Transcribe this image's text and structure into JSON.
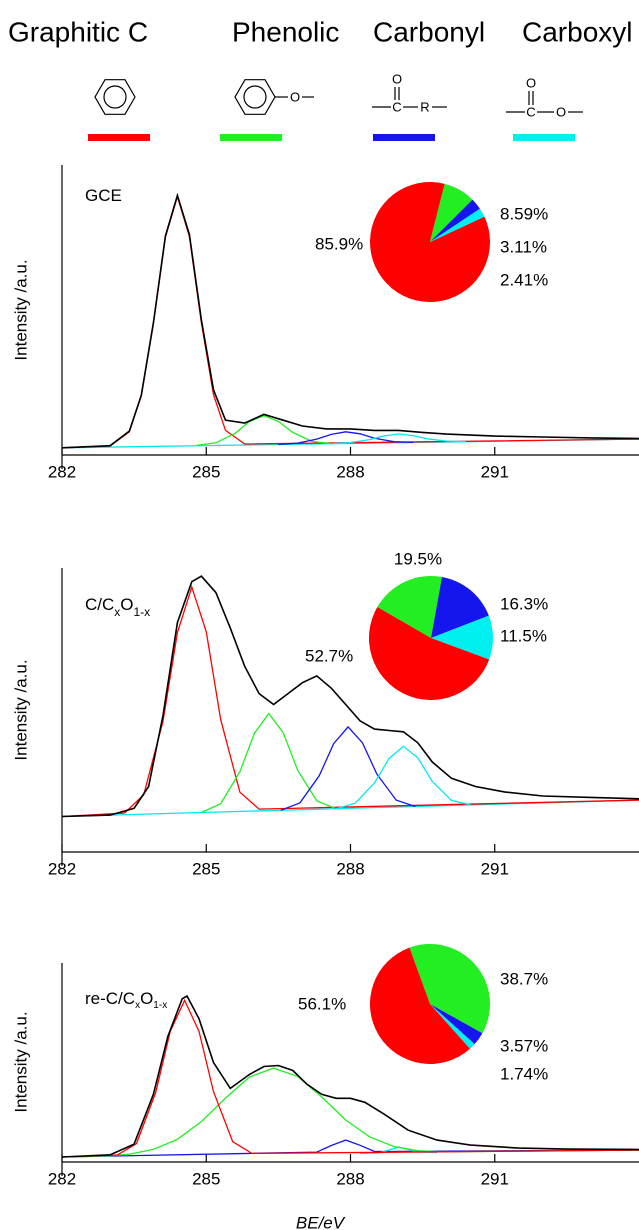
{
  "legend": {
    "items": [
      {
        "name": "Graphitic C",
        "color": "#ff0000"
      },
      {
        "name": "Phenolic",
        "color": "#22ee22",
        "structure_labels": [
          "O"
        ]
      },
      {
        "name": "Carbonyl",
        "color": "#1515ee",
        "structure_labels": [
          "O",
          "C",
          "R"
        ]
      },
      {
        "name": "Carboxyl",
        "color": "#00f0f0",
        "structure_labels": [
          "O",
          "C",
          "O"
        ]
      }
    ]
  },
  "chart_data": [
    {
      "type": "line",
      "label_parts": [
        {
          "text": "GCE"
        }
      ],
      "ylabel": "Intensity /a.u.",
      "xlim": [
        282,
        294
      ],
      "xticks": [
        282,
        285,
        288,
        291
      ],
      "ylim": [
        0,
        100
      ],
      "series": [
        {
          "color": "#00e8f0",
          "x": [
            282,
            294
          ],
          "values": [
            2.5,
            5.5
          ]
        },
        {
          "color": "#ff0000",
          "x": [
            282,
            283,
            283.4,
            283.65,
            283.9,
            284.15,
            284.4,
            284.65,
            284.9,
            285.15,
            285.4,
            285.8,
            294
          ],
          "values": [
            2.5,
            3.1,
            8.0,
            20.4,
            45.3,
            75.1,
            89.1,
            75.3,
            45.5,
            20.8,
            8.5,
            3.8,
            5.5
          ]
        },
        {
          "color": "#22ee22",
          "x": [
            284.8,
            285.2,
            285.6,
            285.9,
            286.2,
            286.5,
            286.8,
            287.2,
            287.6
          ],
          "values": [
            3.3,
            4.2,
            7.5,
            11.5,
            13.6,
            11.6,
            7.8,
            4.7,
            3.9
          ]
        },
        {
          "color": "#1515ee",
          "x": [
            286.5,
            286.9,
            287.3,
            287.6,
            287.9,
            288.2,
            288.5,
            288.9,
            289.3
          ],
          "values": [
            3.63,
            4.1,
            5.5,
            7.1,
            8.0,
            7.3,
            5.8,
            4.6,
            4.33
          ]
        },
        {
          "color": "#00e8f0",
          "x": [
            287.6,
            288.0,
            288.4,
            288.7,
            289.0,
            289.3,
            289.6,
            290.0,
            290.4
          ],
          "values": [
            3.9,
            4.3,
            5.3,
            6.6,
            7.25,
            6.7,
            5.6,
            4.8,
            4.6
          ]
        },
        {
          "color": "#000000",
          "x": [
            282,
            283,
            283.4,
            283.65,
            283.9,
            284.15,
            284.4,
            284.65,
            284.9,
            285.15,
            285.4,
            285.8,
            286.2,
            286.6,
            287,
            287.5,
            288,
            288.5,
            289,
            289.5,
            290,
            291,
            292,
            293,
            294
          ],
          "values": [
            2.5,
            3.2,
            8.2,
            20.6,
            45.6,
            75.5,
            89.5,
            76,
            46.5,
            22.5,
            12,
            11,
            14,
            12,
            10,
            9,
            9,
            8.5,
            8.5,
            7.8,
            7.2,
            6.5,
            6.2,
            5.9,
            5.7
          ]
        }
      ],
      "inset": {
        "type": "pie",
        "startangle": -25,
        "values": [
          85.9,
          8.59,
          3.11,
          2.41
        ],
        "value_labels": [
          "85.9%",
          "8.59%",
          "3.11%",
          "2.41%"
        ],
        "colors": [
          "#ff0000",
          "#22ee22",
          "#1515ee",
          "#00f0f0"
        ]
      }
    },
    {
      "type": "line",
      "label_parts": [
        {
          "text": "C/C"
        },
        {
          "text": "x",
          "sub": true
        },
        {
          "text": "O"
        },
        {
          "text": "1-x",
          "sub": true
        }
      ],
      "ylabel": "Intensity /a.u.",
      "xlim": [
        282,
        294
      ],
      "xticks": [
        282,
        285,
        288,
        291
      ],
      "ylim": [
        0,
        104
      ],
      "series": [
        {
          "color": "#00e8f0",
          "x": [
            282,
            294
          ],
          "values": [
            13,
            19
          ]
        },
        {
          "color": "#ff0000",
          "x": [
            282,
            283.3,
            283.7,
            284.1,
            284.4,
            284.7,
            285.0,
            285.3,
            285.7,
            286.1,
            294
          ],
          "values": [
            13,
            14.3,
            20.9,
            47.9,
            80.3,
            97,
            80.6,
            48.5,
            21.9,
            15.7,
            19
          ]
        },
        {
          "color": "#22ee22",
          "x": [
            284.9,
            285.3,
            285.7,
            286.0,
            286.3,
            286.6,
            286.9,
            287.3,
            287.7
          ],
          "values": [
            14.45,
            17.7,
            29.4,
            43.4,
            50.7,
            43.7,
            30,
            18.7,
            15.85
          ]
        },
        {
          "color": "#1515ee",
          "x": [
            286.55,
            286.95,
            287.35,
            287.65,
            287.95,
            288.25,
            288.55,
            288.95,
            289.35
          ],
          "values": [
            15.28,
            18,
            27.9,
            39.7,
            45.8,
            40,
            28.5,
            19,
            16.68
          ]
        },
        {
          "color": "#00e8f0",
          "x": [
            287.7,
            288.1,
            288.5,
            288.8,
            289.1,
            289.4,
            289.7,
            290.1,
            290.5
          ],
          "values": [
            15.85,
            17.9,
            25.3,
            34.2,
            38.7,
            34.5,
            25.9,
            18.9,
            17.25
          ]
        },
        {
          "color": "#000000",
          "x": [
            282,
            283,
            283.5,
            283.8,
            284.1,
            284.4,
            284.7,
            284.9,
            285.2,
            285.5,
            285.8,
            286.1,
            286.4,
            286.7,
            287.0,
            287.3,
            287.6,
            287.9,
            288.2,
            288.5,
            288.8,
            289.1,
            289.4,
            289.7,
            290.1,
            290.6,
            291.2,
            292,
            293,
            294
          ],
          "values": [
            13,
            13.5,
            16,
            24,
            50,
            84,
            99,
            101,
            95,
            82,
            68,
            58,
            54,
            58,
            62,
            64.5,
            60,
            54,
            48,
            45,
            44.5,
            44,
            40,
            33,
            27,
            24,
            22,
            20.5,
            20,
            19.5
          ]
        }
      ],
      "inset": {
        "type": "pie",
        "startangle": -150,
        "values": [
          52.7,
          19.5,
          16.3,
          11.5
        ],
        "order": [
          1,
          2,
          3,
          0
        ],
        "value_labels": [
          "52.7%",
          "19.5%",
          "16.3%",
          "11.5%"
        ],
        "colors": [
          "#ff0000",
          "#22ee22",
          "#1515ee",
          "#00f0f0"
        ]
      }
    },
    {
      "type": "line",
      "label_parts": [
        {
          "text": "re-C/C"
        },
        {
          "text": "x",
          "sub": true
        },
        {
          "text": "O"
        },
        {
          "text": "1-x",
          "sub": true
        }
      ],
      "ylabel": "Intensity /a.u.",
      "xlabel": "BE/eV",
      "xlim": [
        282,
        294
      ],
      "xticks": [
        282,
        285,
        288,
        291
      ],
      "ylim": [
        0,
        100
      ],
      "series": [
        {
          "color": "#1515ee",
          "x": [
            282,
            287.3,
            287.6,
            287.9,
            288.2,
            288.5,
            294
          ],
          "values": [
            2.5,
            4.95,
            8.3,
            11,
            8.4,
            5.3,
            6
          ]
        },
        {
          "color": "#00e8f0",
          "x": [
            288.2,
            288.6,
            289.0,
            289.4,
            289.8
          ],
          "values": [
            4.3,
            4.6,
            7.5,
            5,
            4.7
          ]
        },
        {
          "color": "#22ee22",
          "x": [
            282,
            282.9,
            283.4,
            283.9,
            284.4,
            284.9,
            285.4,
            285.9,
            286.4,
            286.9,
            287.4,
            287.9,
            288.4,
            288.9,
            289.4,
            289.9,
            294
          ],
          "values": [
            2.5,
            3.0,
            3.9,
            6.35,
            11.4,
            20.3,
            32.1,
            42.7,
            47.2,
            43,
            32.7,
            21.1,
            12.6,
            7.8,
            5.7,
            5.1,
            6
          ]
        },
        {
          "color": "#ff0000",
          "x": [
            282,
            283.15,
            283.55,
            283.95,
            284.25,
            284.55,
            284.85,
            285.15,
            285.55,
            285.95,
            294
          ],
          "values": [
            2.5,
            3.5,
            9.3,
            35.1,
            65.6,
            81.2,
            65.7,
            35.4,
            10.2,
            4.3,
            6
          ]
        },
        {
          "color": "#000000",
          "x": [
            282,
            283,
            283.5,
            283.9,
            284.2,
            284.5,
            284.6,
            284.85,
            285.15,
            285.5,
            285.9,
            286.2,
            286.5,
            286.8,
            287.1,
            287.4,
            287.7,
            288.0,
            288.3,
            288.7,
            289.2,
            289.8,
            290.5,
            291.5,
            292.5,
            294
          ],
          "values": [
            2.5,
            3.6,
            9,
            34,
            63,
            82,
            83.4,
            72,
            50,
            37,
            44,
            48,
            48.5,
            46,
            39,
            34,
            32,
            32,
            30,
            24,
            16,
            11,
            8.5,
            7,
            6.5,
            6.3
          ]
        }
      ],
      "inset": {
        "type": "pie",
        "startangle": -110,
        "values": [
          56.1,
          38.7,
          3.57,
          1.74
        ],
        "order": [
          1,
          2,
          3,
          0
        ],
        "value_labels": [
          "56.1%",
          "38.7%",
          "3.57%",
          "1.74%"
        ],
        "colors": [
          "#ff0000",
          "#22ee22",
          "#1515ee",
          "#00f0f0"
        ]
      }
    }
  ]
}
